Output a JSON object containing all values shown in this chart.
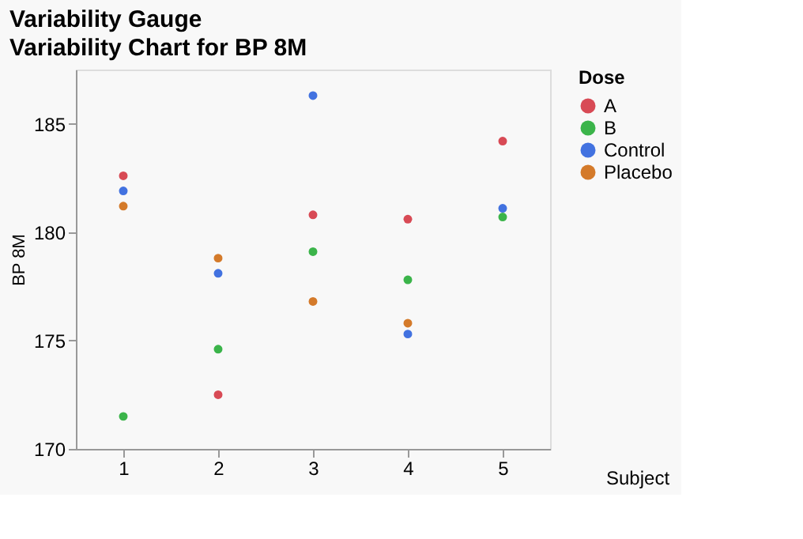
{
  "chart_data": {
    "type": "scatter",
    "title": "Variability Gauge",
    "subtitle": "Variability Chart for BP 8M",
    "xlabel": "Subject",
    "ylabel": "BP 8M",
    "legend_title": "Dose",
    "categories": [
      "1",
      "2",
      "3",
      "4",
      "5"
    ],
    "series": [
      {
        "name": "A",
        "color": "#d84a55",
        "values": [
          182.6,
          172.5,
          180.8,
          180.6,
          184.2
        ]
      },
      {
        "name": "B",
        "color": "#3bb44a",
        "values": [
          171.5,
          174.6,
          179.1,
          177.8,
          180.7
        ]
      },
      {
        "name": "Control",
        "color": "#4272e0",
        "values": [
          181.9,
          178.1,
          186.3,
          175.3,
          181.1
        ]
      },
      {
        "name": "Placebo",
        "color": "#d47a2a",
        "values": [
          181.2,
          178.8,
          176.8,
          175.8,
          null
        ]
      }
    ],
    "ylim": [
      170,
      187.5
    ],
    "yticks": [
      170,
      175,
      180,
      185
    ],
    "grid": false,
    "legend": "right",
    "marker": "circle"
  }
}
